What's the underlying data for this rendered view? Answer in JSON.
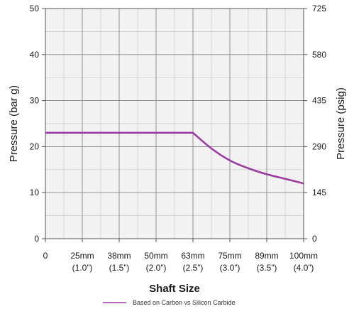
{
  "chart_data": {
    "type": "line",
    "x_axis": {
      "title": "Shaft Size",
      "categories": [
        {
          "top": "0",
          "bottom": ""
        },
        {
          "top": "25mm",
          "bottom": "(1.0”)"
        },
        {
          "top": "38mm",
          "bottom": "(1.5”)"
        },
        {
          "top": "50mm",
          "bottom": "(2.0”)"
        },
        {
          "top": "63mm",
          "bottom": "(2.5”)"
        },
        {
          "top": "75mm",
          "bottom": "(3.0”)"
        },
        {
          "top": "89mm",
          "bottom": "(3.5”)"
        },
        {
          "top": "100mm",
          "bottom": "(4.0”)"
        }
      ],
      "range": [
        0,
        7
      ]
    },
    "y_left": {
      "title": "Pressure (bar g)",
      "range": [
        0,
        50
      ],
      "ticks": [
        0,
        10,
        20,
        30,
        40,
        50
      ]
    },
    "y_right": {
      "title": "Pressure (psig)",
      "range": [
        0,
        725
      ],
      "ticks": [
        0,
        145,
        290,
        435,
        580,
        725
      ]
    },
    "grid": true,
    "series": [
      {
        "name": "Based on Carbon vs Silicon Carbide",
        "color": "#9b3aa0",
        "points": [
          [
            0,
            23
          ],
          [
            4,
            23
          ],
          [
            4.5,
            19.6
          ],
          [
            5,
            17.0
          ],
          [
            5.5,
            15.3
          ],
          [
            6,
            14.0
          ],
          [
            6.5,
            13.0
          ],
          [
            7,
            12.0
          ]
        ]
      }
    ],
    "legend": "bottom-center"
  }
}
